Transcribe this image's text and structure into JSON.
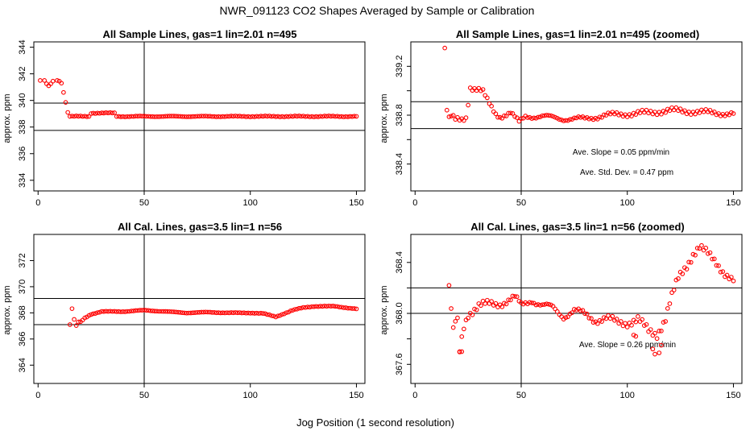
{
  "page": {
    "suptitle": "NWR_091123  CO2 Shapes Averaged by Sample or Calibration",
    "xlabel": "Jog Position (1 second resolution)"
  },
  "colors": {
    "points": "#ff0000",
    "axes": "#000000"
  },
  "chart_data": [
    {
      "type": "scatter",
      "title": "All Sample Lines, gas=1 lin=2.01 n=495",
      "xlabel": "",
      "ylabel": "approx. ppm",
      "xlim": [
        -2,
        154
      ],
      "ylim": [
        333.2,
        344.4
      ],
      "xticks": [
        0,
        50,
        100,
        150
      ],
      "xtick_labels": [
        "0",
        "50",
        "100",
        "150"
      ],
      "yticks": [
        334,
        336,
        338,
        340,
        342,
        344
      ],
      "ytick_labels": [
        "334",
        "336",
        "338",
        "340",
        "342",
        "344"
      ],
      "hlines": [
        337.75,
        339.8
      ],
      "vlines": [
        50
      ],
      "annotations": [],
      "series": [
        {
          "name": "sample",
          "keys": [
            [
              1,
              341.5
            ],
            [
              3,
              341.5
            ],
            [
              4,
              341.25
            ],
            [
              5,
              341.1
            ],
            [
              6,
              341.25
            ],
            [
              7,
              341.45
            ],
            [
              9,
              341.5
            ],
            [
              10,
              341.45
            ],
            [
              11,
              341.3
            ],
            [
              12,
              340.6
            ],
            [
              13,
              339.85
            ],
            [
              14,
              339.1
            ],
            [
              15,
              338.8
            ]
          ],
          "tail": {
            "from": 16,
            "to": 150,
            "base": 338.8,
            "bumps": [
              [
                25,
                36,
                0.25
              ]
            ],
            "amp": 0.04
          }
        }
      ]
    },
    {
      "type": "scatter",
      "title": "All Sample Lines, gas=1 lin=2.01 n=495 (zoomed)",
      "xlabel": "",
      "ylabel": "approx. ppm",
      "xlim": [
        -2,
        154
      ],
      "ylim": [
        338.18,
        339.4
      ],
      "xticks": [
        0,
        50,
        100,
        150
      ],
      "xtick_labels": [
        "0",
        "50",
        "100",
        "150"
      ],
      "yticks": [
        338.4,
        338.8,
        339.2
      ],
      "ytick_labels": [
        "338.4",
        "338.8",
        "339.2"
      ],
      "minor_yticks": [
        338.6,
        339.0
      ],
      "hlines": [
        338.69,
        338.91
      ],
      "vlines": [
        50
      ],
      "annotations": [
        "Ave. Slope =  0.05  ppm/min",
        "Ave. Std. Dev. =  0.47  ppm"
      ],
      "series": [
        {
          "name": "sample-zoom",
          "keys": [
            [
              14,
              339.35
            ],
            [
              15,
              338.85
            ],
            [
              16,
              338.77
            ],
            [
              17,
              338.79
            ],
            [
              19,
              338.76
            ],
            [
              22,
              338.76
            ],
            [
              24,
              338.78
            ],
            [
              26,
              339.03
            ],
            [
              28,
              339.02
            ],
            [
              30,
              339.01
            ],
            [
              32,
              338.99
            ],
            [
              34,
              338.92
            ],
            [
              36,
              338.86
            ],
            [
              38,
              338.81
            ],
            [
              40,
              338.79
            ],
            [
              45,
              338.82
            ],
            [
              49,
              338.74
            ],
            [
              52,
              338.79
            ],
            [
              60,
              338.79
            ],
            [
              70,
              338.77
            ],
            [
              80,
              338.77
            ],
            [
              90,
              338.8
            ],
            [
              100,
              338.81
            ],
            [
              110,
              338.82
            ],
            [
              120,
              338.84
            ],
            [
              130,
              338.83
            ],
            [
              140,
              338.82
            ],
            [
              150,
              338.81
            ]
          ],
          "noise": 0.025
        }
      ]
    },
    {
      "type": "scatter",
      "title": "All Cal. Lines, gas=3.5 lin=1 n=56",
      "xlabel": "",
      "ylabel": "approx. ppm",
      "xlim": [
        -2,
        154
      ],
      "ylim": [
        362.6,
        374.0
      ],
      "xticks": [
        0,
        50,
        100,
        150
      ],
      "xtick_labels": [
        "0",
        "50",
        "100",
        "150"
      ],
      "yticks": [
        364,
        366,
        368,
        370,
        372
      ],
      "ytick_labels": [
        "364",
        "366",
        "368",
        "370",
        "372"
      ],
      "hlines": [
        367.1,
        369.1
      ],
      "vlines": [
        50
      ],
      "annotations": [],
      "series": [
        {
          "name": "cal",
          "keys": [
            [
              15,
              367.1
            ],
            [
              16,
              368.3
            ],
            [
              17,
              367.5
            ],
            [
              18,
              367.0
            ],
            [
              19,
              367.3
            ],
            [
              20,
              367.3
            ],
            [
              22,
              367.6
            ],
            [
              25,
              367.9
            ],
            [
              30,
              368.1
            ],
            [
              40,
              368.1
            ],
            [
              50,
              368.2
            ],
            [
              60,
              368.1
            ],
            [
              70,
              368.0
            ],
            [
              80,
              368.05
            ],
            [
              90,
              368.0
            ],
            [
              100,
              368.0
            ],
            [
              106,
              367.95
            ],
            [
              112,
              367.7
            ],
            [
              116,
              367.95
            ],
            [
              120,
              368.2
            ],
            [
              125,
              368.4
            ],
            [
              130,
              368.5
            ],
            [
              140,
              368.5
            ],
            [
              150,
              368.3
            ]
          ],
          "noise": 0.03
        }
      ]
    },
    {
      "type": "scatter",
      "title": "All Cal. Lines, gas=3.5 lin=1 n=56 (zoomed)",
      "xlabel": "",
      "ylabel": "approx. ppm",
      "xlim": [
        -2,
        154
      ],
      "ylim": [
        367.45,
        368.62
      ],
      "xticks": [
        0,
        50,
        100,
        150
      ],
      "xtick_labels": [
        "0",
        "50",
        "100",
        "150"
      ],
      "yticks": [
        367.6,
        368.0,
        368.4
      ],
      "ytick_labels": [
        "367.6",
        "368.0",
        "368.4"
      ],
      "minor_yticks": [
        367.8,
        368.2
      ],
      "hlines": [
        368.0,
        368.2
      ],
      "vlines": [
        50
      ],
      "annotations": [
        "Ave. Slope =  0.26  ppm/min"
      ],
      "series": [
        {
          "name": "cal-zoom",
          "keys": [
            [
              16,
              368.22
            ],
            [
              18,
              367.85
            ],
            [
              19,
              367.93
            ],
            [
              20,
              367.93
            ],
            [
              21,
              367.7
            ],
            [
              23,
              367.9
            ],
            [
              25,
              368.0
            ],
            [
              30,
              368.06
            ],
            [
              40,
              368.08
            ],
            [
              47,
              368.12
            ],
            [
              50,
              368.06
            ],
            [
              55,
              368.11
            ],
            [
              60,
              368.06
            ],
            [
              65,
              368.04
            ],
            [
              70,
              367.98
            ],
            [
              75,
              368.02
            ],
            [
              80,
              367.99
            ],
            [
              85,
              367.95
            ],
            [
              90,
              367.96
            ],
            [
              95,
              367.93
            ],
            [
              100,
              367.93
            ],
            [
              105,
              367.95
            ],
            [
              110,
              367.86
            ],
            [
              114,
              367.84
            ],
            [
              118,
              367.96
            ],
            [
              120,
              368.08
            ],
            [
              124,
              368.27
            ],
            [
              128,
              368.38
            ],
            [
              131,
              368.47
            ],
            [
              134,
              368.52
            ],
            [
              138,
              368.46
            ],
            [
              142,
              368.4
            ],
            [
              146,
              368.32
            ],
            [
              150,
              368.25
            ]
          ],
          "noise": 0.04,
          "extra": [
            [
              21,
              367.7
            ],
            [
              22,
              367.7
            ],
            [
              112,
              367.72
            ],
            [
              113,
              367.68
            ],
            [
              115,
              367.69
            ],
            [
              116,
              367.75
            ],
            [
              103,
              367.83
            ],
            [
              104,
              367.82
            ]
          ]
        }
      ]
    }
  ]
}
